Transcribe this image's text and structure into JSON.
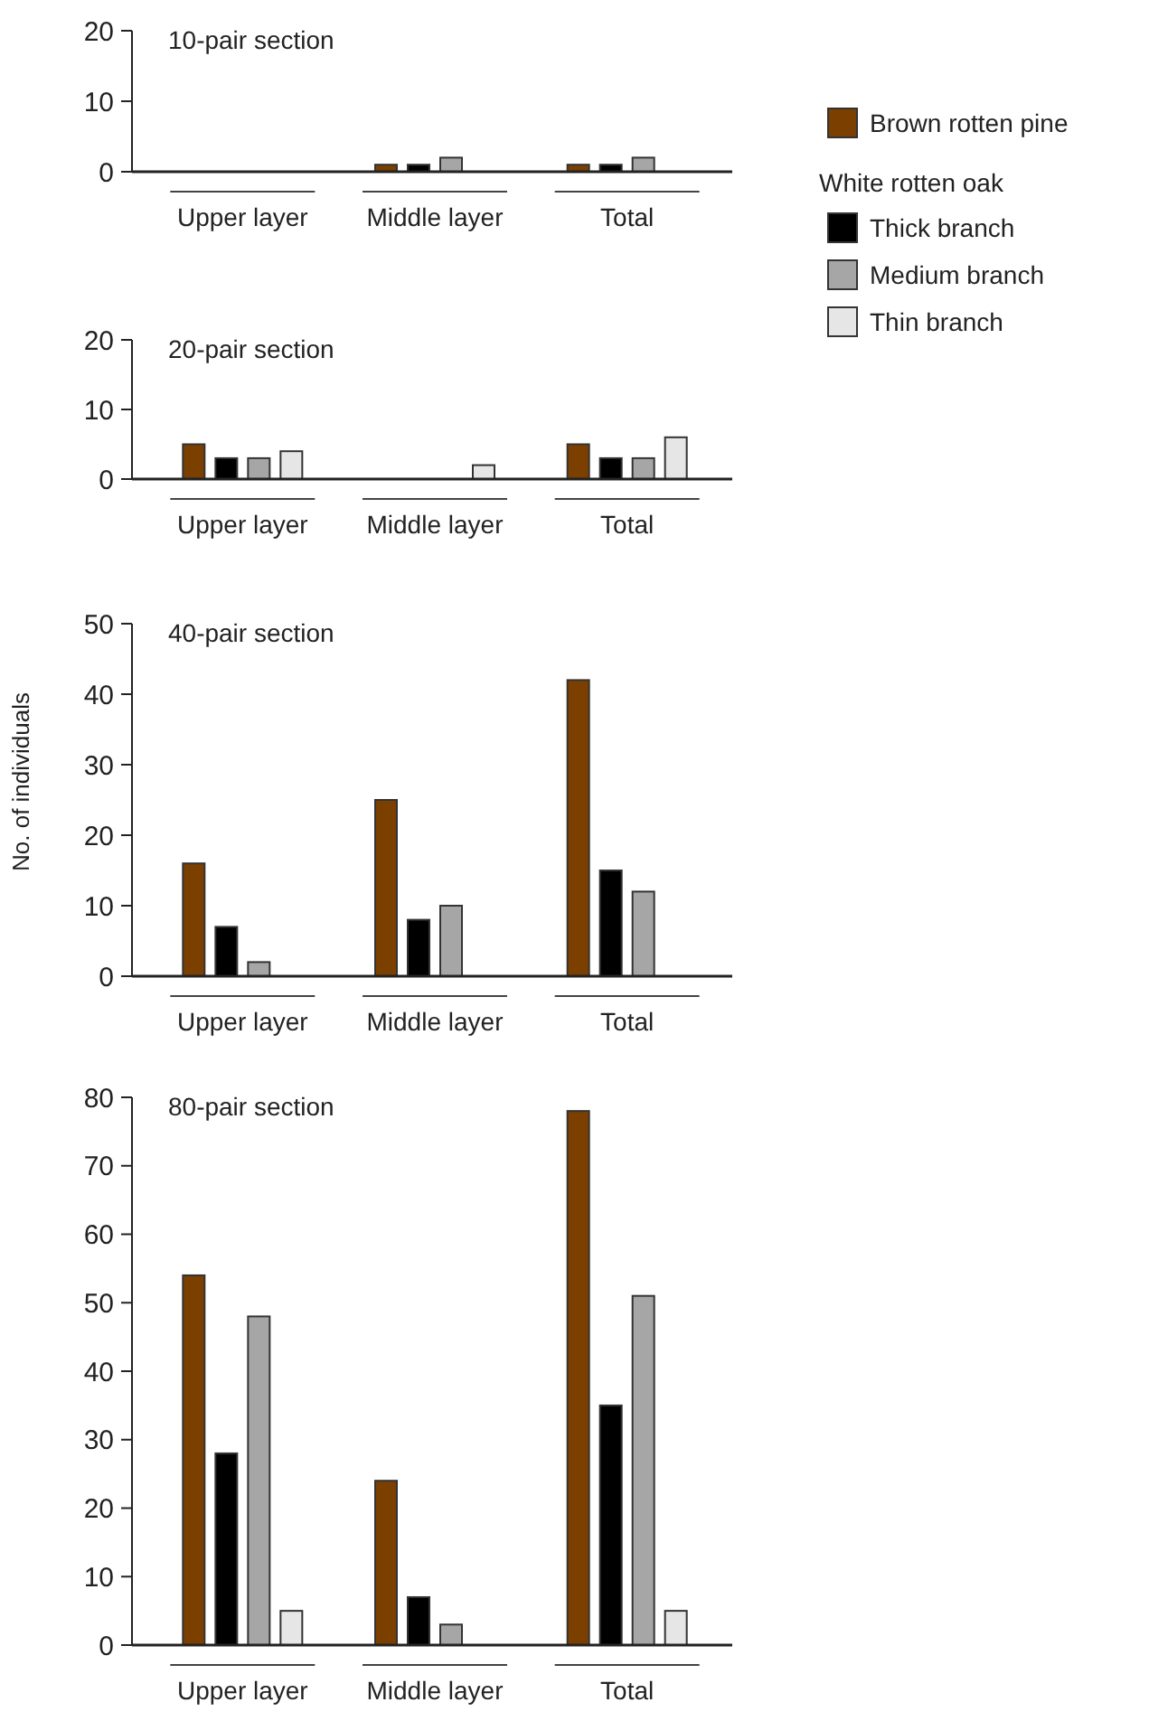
{
  "chart_data": [
    {
      "type": "bar",
      "title": "10-pair section",
      "categories": [
        "Upper layer",
        "Middle layer",
        "Total"
      ],
      "ylim": [
        0,
        20
      ],
      "yticks": [
        0,
        10,
        20
      ],
      "legend": "right",
      "annotations": [
        "White rotten oak"
      ],
      "series": [
        {
          "name": "Brown rotten pine",
          "color": "#7b3f00",
          "values": [
            0,
            1,
            1
          ]
        },
        {
          "name": "Thick  branch",
          "color": "#000000",
          "values": [
            0,
            1,
            1
          ]
        },
        {
          "name": "Medium branch",
          "color": "#a6a6a6",
          "values": [
            0,
            2,
            2
          ]
        },
        {
          "name": "Thin branch",
          "color": "#e6e6e6",
          "values": [
            0,
            0,
            0
          ]
        }
      ]
    },
    {
      "type": "bar",
      "title": "20-pair section",
      "categories": [
        "Upper layer",
        "Middle layer",
        "Total"
      ],
      "ylim": [
        0,
        20
      ],
      "yticks": [
        0,
        10,
        20
      ],
      "series": [
        {
          "color": "#7b3f00",
          "values": [
            5,
            0,
            5
          ]
        },
        {
          "color": "#000000",
          "values": [
            3,
            0,
            3
          ]
        },
        {
          "color": "#a6a6a6",
          "values": [
            3,
            0,
            3
          ]
        },
        {
          "color": "#e6e6e6",
          "values": [
            4,
            2,
            6
          ]
        }
      ]
    },
    {
      "type": "bar",
      "title": "40-pair section",
      "ylabel": "No. of individuals",
      "categories": [
        "Upper layer",
        "Middle layer",
        "Total"
      ],
      "ylim": [
        0,
        50
      ],
      "yticks": [
        0,
        10,
        20,
        30,
        40,
        50
      ],
      "series": [
        {
          "color": "#7b3f00",
          "values": [
            16,
            25,
            42
          ]
        },
        {
          "color": "#000000",
          "values": [
            7,
            8,
            15
          ]
        },
        {
          "color": "#a6a6a6",
          "values": [
            2,
            10,
            12
          ]
        },
        {
          "color": "#e6e6e6",
          "values": [
            0,
            0,
            0
          ]
        }
      ]
    },
    {
      "type": "bar",
      "title": "80-pair section",
      "categories": [
        "Upper layer",
        "Middle layer",
        "Total"
      ],
      "ylim": [
        0,
        80
      ],
      "yticks": [
        0,
        10,
        20,
        30,
        40,
        50,
        60,
        70,
        80
      ],
      "series": [
        {
          "color": "#7b3f00",
          "values": [
            54,
            24,
            78
          ]
        },
        {
          "color": "#000000",
          "values": [
            28,
            7,
            35
          ]
        },
        {
          "color": "#a6a6a6",
          "values": [
            48,
            3,
            51
          ]
        },
        {
          "color": "#e6e6e6",
          "values": [
            5,
            0,
            5
          ]
        }
      ]
    }
  ]
}
